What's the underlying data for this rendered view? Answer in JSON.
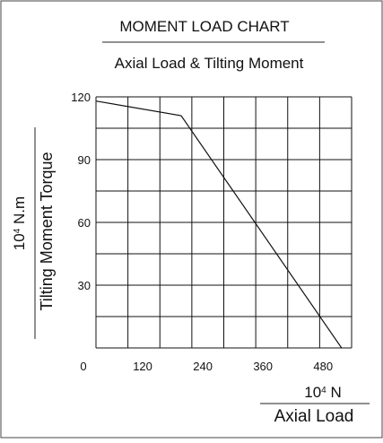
{
  "chart_data": {
    "type": "line",
    "title": "MOMENT LOAD CHART",
    "subtitle": "Axial Load & Tilting Moment",
    "ylabel_unit": "10⁴ N.m",
    "ylabel": "Tilting Moment Torque",
    "xlabel_unit": "10⁴ N",
    "xlabel": "Axial Load",
    "xlim": [
      0,
      510
    ],
    "ylim": [
      0,
      120
    ],
    "x_ticks": [
      "0",
      "120",
      "240",
      "360",
      "480"
    ],
    "y_ticks": [
      "120",
      "90",
      "60",
      "30"
    ],
    "grid": true,
    "series": [
      {
        "x": [
          0,
          170,
          490
        ],
        "y": [
          118,
          111,
          0
        ]
      }
    ]
  }
}
